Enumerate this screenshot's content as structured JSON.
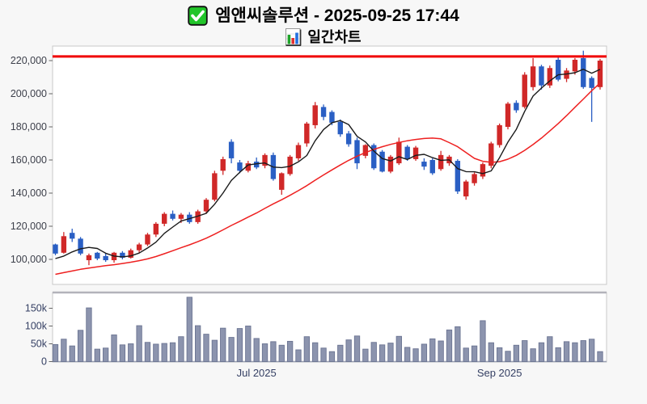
{
  "header": {
    "title": "엠앤씨솔루션 - 2025-09-25 17:44",
    "subtitle": "일간차트",
    "checkbox_icon": "green-checkbox-icon",
    "chart_icon": "bar-chart-icon"
  },
  "chart_data": {
    "type": "candlestick+volume",
    "title": "엠앤씨솔루션 - 2025-09-25 17:44",
    "subtitle": "일간차트",
    "legend_position": "none",
    "grid": false,
    "price_axis": {
      "tick_labels": [
        "220,000",
        "200,000",
        "180,000",
        "160,000",
        "140,000",
        "120,000",
        "100,000"
      ],
      "tick_values": [
        220000,
        200000,
        180000,
        160000,
        140000,
        120000,
        100000
      ],
      "range": [
        88000,
        228000
      ]
    },
    "volume_axis": {
      "tick_labels": [
        "150k",
        "100k",
        "50k",
        "0"
      ],
      "tick_values": [
        150000,
        100000,
        50000,
        0
      ],
      "range": [
        0,
        190000
      ]
    },
    "x_axis": {
      "labels": [
        {
          "text": "Jul 2025",
          "day": 25
        },
        {
          "text": "Sep 2025",
          "day": 54
        }
      ]
    },
    "resistance_line": {
      "value": 222500,
      "color": "#f00000"
    },
    "colors": {
      "up": "#d02828",
      "down": "#2a5fc4",
      "ma_short": "#1a1a1a",
      "ma_long": "#ee2020",
      "volume_fill": "#8c94ae",
      "volume_border": "#6b7492",
      "panel_border": "#c8c8c8",
      "axis_text_price": "#3c3f4a",
      "axis_text_volume": "#343f63",
      "background": "#ffffff"
    },
    "candles": [
      [
        109000,
        109500,
        102500,
        103500
      ],
      [
        104000,
        116500,
        103500,
        114000
      ],
      [
        116000,
        118500,
        110500,
        112500
      ],
      [
        112500,
        113500,
        102500,
        103500
      ],
      [
        99500,
        103500,
        96500,
        102500
      ],
      [
        104000,
        104500,
        99500,
        100500
      ],
      [
        102000,
        103500,
        98500,
        99500
      ],
      [
        99500,
        104500,
        98000,
        104000
      ],
      [
        104000,
        105000,
        100000,
        101000
      ],
      [
        101000,
        106500,
        100500,
        105500
      ],
      [
        105500,
        110000,
        104000,
        109000
      ],
      [
        109000,
        116000,
        108000,
        115000
      ],
      [
        115000,
        122500,
        113500,
        121500
      ],
      [
        121500,
        128500,
        120000,
        127500
      ],
      [
        127500,
        129500,
        123500,
        124500
      ],
      [
        124500,
        128000,
        122000,
        127000
      ],
      [
        127000,
        128500,
        121500,
        122500
      ],
      [
        122500,
        130000,
        121500,
        129000
      ],
      [
        129000,
        137000,
        127500,
        136000
      ],
      [
        136000,
        153500,
        135000,
        152000
      ],
      [
        153500,
        162000,
        151000,
        160500
      ],
      [
        171000,
        172500,
        158000,
        161000
      ],
      [
        158500,
        160000,
        152000,
        153500
      ],
      [
        153500,
        159500,
        152500,
        158000
      ],
      [
        159000,
        161500,
        154500,
        155500
      ],
      [
        156500,
        164000,
        155000,
        163000
      ],
      [
        163000,
        164500,
        147500,
        148500
      ],
      [
        142000,
        152500,
        139000,
        152000
      ],
      [
        151500,
        163000,
        150500,
        162000
      ],
      [
        161000,
        170500,
        159500,
        169000
      ],
      [
        170000,
        183000,
        168000,
        182000
      ],
      [
        181000,
        195000,
        179000,
        193000
      ],
      [
        192000,
        193500,
        184000,
        186000
      ],
      [
        189000,
        190000,
        181000,
        182500
      ],
      [
        183000,
        184500,
        174000,
        175500
      ],
      [
        176000,
        177500,
        168000,
        169500
      ],
      [
        172000,
        173500,
        154500,
        158000
      ],
      [
        162500,
        169500,
        161000,
        169000
      ],
      [
        169000,
        170000,
        154000,
        155000
      ],
      [
        165000,
        166000,
        152500,
        153000
      ],
      [
        153000,
        163000,
        152000,
        162000
      ],
      [
        158000,
        173500,
        157000,
        171000
      ],
      [
        168000,
        169000,
        159500,
        160500
      ],
      [
        160500,
        168500,
        159500,
        167500
      ],
      [
        159000,
        161000,
        154000,
        156000
      ],
      [
        160000,
        161000,
        151000,
        152000
      ],
      [
        154500,
        165500,
        153500,
        163000
      ],
      [
        158000,
        163000,
        156500,
        162000
      ],
      [
        159500,
        160500,
        139500,
        141000
      ],
      [
        138000,
        148000,
        136000,
        147000
      ],
      [
        146000,
        152500,
        144500,
        151500
      ],
      [
        150000,
        158500,
        148500,
        157500
      ],
      [
        156500,
        171000,
        155000,
        170000
      ],
      [
        169000,
        182000,
        167500,
        181000
      ],
      [
        180000,
        195000,
        178500,
        194000
      ],
      [
        194500,
        196000,
        188500,
        190000
      ],
      [
        192000,
        213000,
        191000,
        211500
      ],
      [
        204000,
        221500,
        202000,
        216500
      ],
      [
        216500,
        217500,
        202500,
        205000
      ],
      [
        205000,
        217000,
        203500,
        215500
      ],
      [
        220500,
        222000,
        207500,
        208500
      ],
      [
        209000,
        215500,
        207000,
        214000
      ],
      [
        213500,
        221500,
        211500,
        220500
      ],
      [
        221500,
        226000,
        203000,
        204000
      ],
      [
        209500,
        210500,
        183000,
        203500
      ],
      [
        204000,
        221000,
        202500,
        220000
      ]
    ],
    "volumes": [
      48000,
      63000,
      44000,
      88000,
      151000,
      35000,
      38000,
      75000,
      47000,
      50000,
      101000,
      54000,
      49000,
      51000,
      53000,
      70000,
      181000,
      101000,
      77000,
      60000,
      94000,
      68000,
      93000,
      100000,
      65000,
      50000,
      56000,
      46000,
      57000,
      33000,
      70000,
      53000,
      38000,
      28000,
      46000,
      61000,
      72000,
      35000,
      54000,
      47000,
      52000,
      71000,
      40000,
      36000,
      49000,
      64000,
      58000,
      89000,
      98000,
      38000,
      44000,
      115000,
      53000,
      39000,
      29000,
      46000,
      59000,
      36000,
      53000,
      70000,
      39000,
      56000,
      53000,
      59000,
      63000,
      28000
    ],
    "ma_short": [
      100500,
      102000,
      104500,
      106400,
      107200,
      106600,
      103700,
      102000,
      101500,
      102100,
      103800,
      106900,
      110400,
      115700,
      119500,
      123100,
      124600,
      126100,
      127800,
      133300,
      140000,
      147700,
      152600,
      157000,
      157700,
      158200,
      155700,
      155400,
      156200,
      158900,
      162700,
      171600,
      178400,
      182500,
      183800,
      181300,
      174300,
      170900,
      165400,
      160900,
      159400,
      162000,
      160300,
      162800,
      163400,
      161400,
      159800,
      160100,
      154800,
      153000,
      152900,
      151800,
      153400,
      161400,
      170800,
      178500,
      189300,
      198600,
      203400,
      207700,
      211400,
      211900,
      212700,
      214800,
      212400,
      214700
    ],
    "ma_long": [
      91000,
      92000,
      93000,
      94000,
      94800,
      95500,
      96200,
      96800,
      97500,
      98300,
      99200,
      100300,
      101700,
      103400,
      105200,
      107000,
      108800,
      110700,
      112800,
      115200,
      117800,
      120500,
      123000,
      125500,
      128000,
      130800,
      133500,
      136000,
      138700,
      141500,
      144500,
      147800,
      151000,
      154000,
      157000,
      159800,
      162300,
      164500,
      166400,
      168000,
      169400,
      170600,
      171600,
      172400,
      173000,
      173200,
      172800,
      170500,
      168000,
      164500,
      161000,
      159200,
      158600,
      159000,
      160500,
      162800,
      165800,
      169300,
      173200,
      177500,
      182000,
      186800,
      191800,
      196800,
      201800,
      206500
    ]
  }
}
